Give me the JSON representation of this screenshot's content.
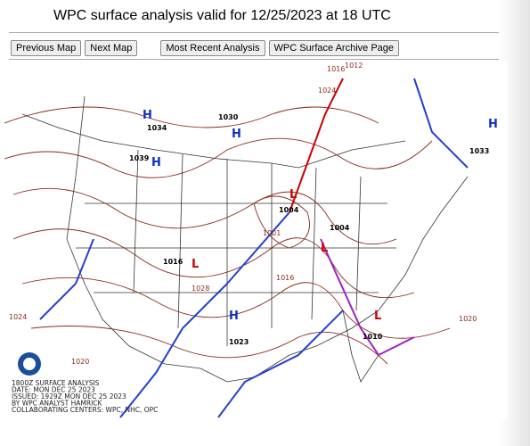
{
  "header": {
    "title": "WPC surface analysis valid for 12/25/2023 at 18 UTC"
  },
  "buttons": [
    "Previous Map",
    "Next Map",
    "Most Recent Analysis",
    "WPC Surface Archive Page"
  ],
  "map": {
    "centers": [
      {
        "label": "H",
        "pressure": "1034"
      },
      {
        "label": "H",
        "pressure": "1039"
      },
      {
        "label": "H",
        "pressure": "1030"
      },
      {
        "label": "L",
        "pressure": "1004"
      },
      {
        "label": "L",
        "pressure": "1016"
      },
      {
        "label": "H",
        "pressure": "1023"
      },
      {
        "label": "L",
        "pressure": "1004"
      },
      {
        "label": "L",
        "pressure": "1010"
      },
      {
        "label": "H",
        "pressure": "1033"
      }
    ],
    "isobars": [
      "1001",
      "1028",
      "1024",
      "1020",
      "1020",
      "1024",
      "1012",
      "1016",
      "1016"
    ],
    "caption": [
      "1800Z SURFACE ANALYSIS",
      "DATE: MON DEC 25 2023",
      "ISSUED: 1929Z MON DEC 25 2023",
      "BY WPC ANALYST HAMRICK",
      "COLLABORATING CENTERS: WPC, NHC, OPC"
    ]
  }
}
